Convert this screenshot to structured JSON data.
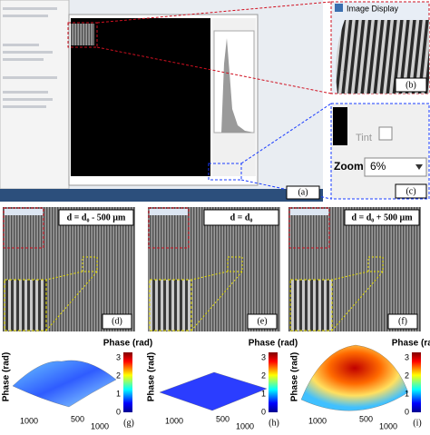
{
  "top": {
    "window_title": "Image Display",
    "tint": "Tint",
    "zoom": "Zoom",
    "zoom_value": "6%",
    "labels": [
      "(a)",
      "(b)",
      "(c)"
    ]
  },
  "middle": {
    "panels": [
      {
        "title": "d = d₀ - 500 µm",
        "label": "(d)"
      },
      {
        "title": "d = d₀",
        "label": "(e)"
      },
      {
        "title": "d = d₀ + 500 µm",
        "label": "(f)"
      }
    ]
  },
  "bottom": {
    "panels": [
      {
        "colorbar_title": "Phase (rad)",
        "z_label": "Phase (rad)",
        "colorbar_ticks": [
          "0",
          "1",
          "2",
          "3"
        ],
        "axis_ticks": [
          "1000",
          "500",
          "1000"
        ],
        "label": "(g)"
      },
      {
        "colorbar_title": "Phase (rad)",
        "z_label": "Phase (rad)",
        "colorbar_ticks": [
          "0",
          "1",
          "2",
          "3"
        ],
        "axis_ticks": [
          "1000",
          "500",
          "1000"
        ],
        "label": "(h)"
      },
      {
        "colorbar_title": "Phase (rad)",
        "z_label": "Phase (rad)",
        "colorbar_ticks": [
          "0",
          "1",
          "2",
          "3"
        ],
        "axis_ticks": [
          "1000",
          "500",
          "1000"
        ],
        "label": "(i)"
      }
    ]
  }
}
